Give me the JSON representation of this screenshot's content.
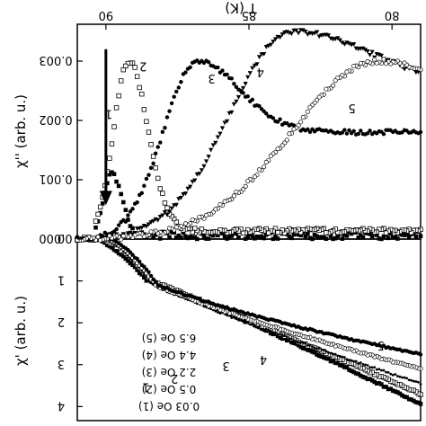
{
  "figure": {
    "orientation": "rotated-180"
  },
  "chart_data": [
    {
      "type": "scatter",
      "panel": "top",
      "xlabel": "T (K)",
      "ylabel": "χ'' (arb. u.)",
      "x_ticks": [
        "80",
        "85",
        "90"
      ],
      "y_ticks": [
        "0.000",
        "0.001",
        "0.002",
        "0.003"
      ],
      "xlim": [
        79,
        91
      ],
      "ylim": [
        0,
        0.0035
      ],
      "grid": false,
      "annotations": [
        "1",
        "2",
        "3",
        "4",
        "5"
      ],
      "arrow": {
        "x": 90.0,
        "from_y": 0.0032,
        "to_y": 0.0006
      },
      "series": [
        {
          "label": "1",
          "marker": "square-filled",
          "dip_T": 89.8,
          "dip_depth": 0.0011,
          "dip_width": 0.5,
          "tail": 0.0
        },
        {
          "label": "2",
          "marker": "square-open",
          "dip_T": 89.2,
          "dip_depth": 0.003,
          "dip_width": 0.9,
          "tail": 0.00014
        },
        {
          "label": "3",
          "marker": "circle-filled",
          "dip_T": 86.8,
          "dip_depth": 0.003,
          "dip_width": 2.0,
          "tail": 0.0018
        },
        {
          "label": "4",
          "marker": "triangle-filled",
          "dip_T": 83.5,
          "dip_depth": 0.0035,
          "dip_width": 3.6,
          "tail": 0.0026
        },
        {
          "label": "5",
          "marker": "circle-open",
          "dip_T": 80.5,
          "dip_depth": 0.003,
          "dip_width": 5.0,
          "tail": 0.00105
        }
      ]
    },
    {
      "type": "scatter",
      "panel": "bottom",
      "xlabel": "",
      "ylabel": "χ' (arb. u.)",
      "y_ticks": [
        "0",
        "1",
        "2",
        "3",
        "4"
      ],
      "xlim": [
        79,
        91
      ],
      "ylim": [
        0,
        4.25
      ],
      "grid": false,
      "annotations": [
        "1",
        "2",
        "3",
        "4",
        "5"
      ],
      "legend": [
        "6.5 Oe (5)",
        "4.4 Oe (4)",
        "2.2 Oe (3)",
        "0.5 Oe (2)",
        "0.03 Oe (1)"
      ],
      "series": [
        {
          "label": "1",
          "field": "0.03 Oe",
          "marker": "square-filled",
          "start": 3.95,
          "end_T": 90.3,
          "mid_T": 88.6,
          "mid_val": 2.95,
          "flat": 0.6
        },
        {
          "label": "2",
          "field": "0.5 Oe",
          "marker": "square-open",
          "start": 3.7,
          "end_T": 90.1,
          "mid_T": 88.6,
          "mid_val": 2.0,
          "flat": 0.5
        },
        {
          "label": "3",
          "field": "2.2 Oe",
          "marker": "dot",
          "start": 3.45,
          "end_T": 90.0,
          "mid_T": 86.5,
          "mid_val": 2.25,
          "flat": 0.3
        },
        {
          "label": "4",
          "field": "4.4 Oe",
          "marker": "circle-open",
          "start": 3.1,
          "end_T": 89.9,
          "mid_T": 86.0,
          "mid_val": 1.95,
          "flat": 0.2
        },
        {
          "label": "5",
          "field": "6.5 Oe",
          "marker": "circle-filled",
          "start": 2.75,
          "end_T": 89.8,
          "mid_T": 84.0,
          "mid_val": 1.9,
          "flat": 0.1
        }
      ]
    }
  ]
}
